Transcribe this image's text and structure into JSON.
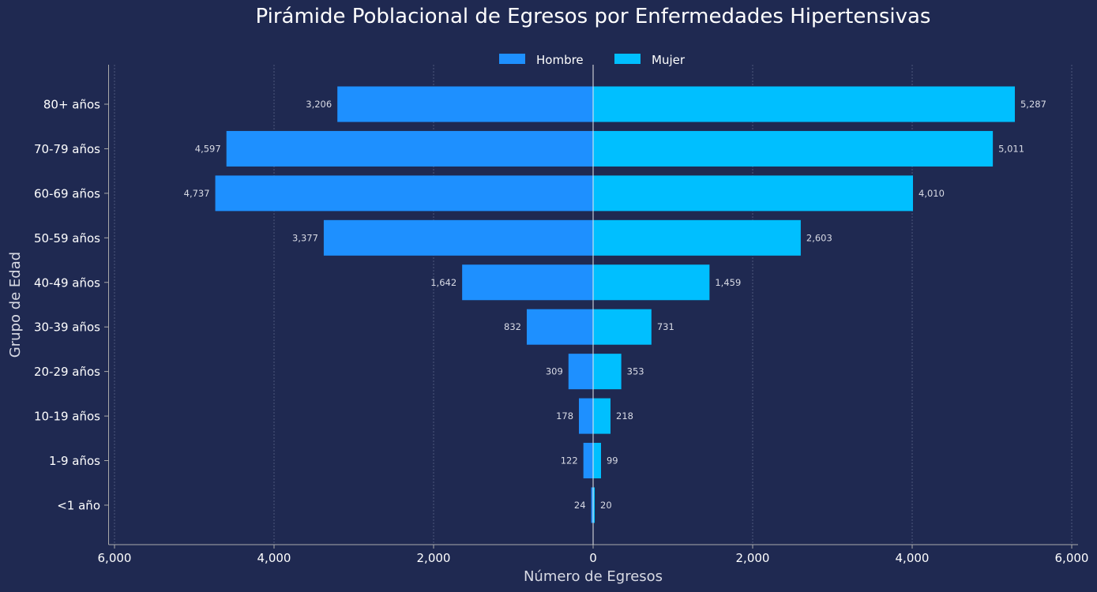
{
  "chart_data": {
    "type": "bar",
    "orientation": "horizontal-diverging",
    "title": "Pirámide Poblacional de Egresos por Enfermedades Hipertensivas",
    "xlabel": "Número de Egresos",
    "ylabel": "Grupo de Edad",
    "categories": [
      "80+ años",
      "70-79 años",
      "60-69 años",
      "50-59 años",
      "40-49 años",
      "30-39 años",
      "20-29 años",
      "10-19 años",
      "1-9 años",
      "<1 año"
    ],
    "series": [
      {
        "name": "Hombre",
        "side": "left",
        "color": "#1e90ff",
        "values": [
          3206,
          4597,
          4737,
          3377,
          1642,
          832,
          309,
          178,
          122,
          24
        ],
        "value_labels": [
          "3,206",
          "4,597",
          "4,737",
          "3,377",
          "1,642",
          "832",
          "309",
          "178",
          "122",
          "24"
        ]
      },
      {
        "name": "Mujer",
        "side": "right",
        "color": "#00bfff",
        "values": [
          5287,
          5011,
          4010,
          2603,
          1459,
          731,
          353,
          218,
          99,
          20
        ],
        "value_labels": [
          "5,287",
          "5,011",
          "4,010",
          "2,603",
          "1,459",
          "731",
          "353",
          "218",
          "99",
          "20"
        ]
      }
    ],
    "xlim": [
      -6000,
      6000
    ],
    "xticks": [
      -6000,
      -4000,
      -2000,
      0,
      2000,
      4000,
      6000
    ],
    "xtick_labels": [
      "6,000",
      "4,000",
      "2,000",
      "0",
      "2,000",
      "4,000",
      "6,000"
    ],
    "grid": "vertical dashed",
    "legend_position": "top-center",
    "colors": {
      "background": "#1f2951",
      "hombre": "#1e90ff",
      "mujer": "#00bfff"
    }
  }
}
